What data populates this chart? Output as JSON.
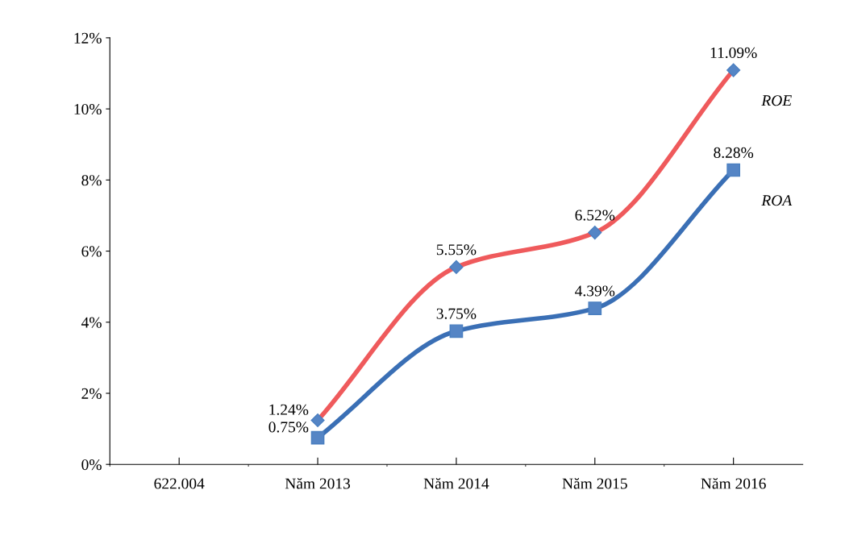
{
  "chart_data": {
    "type": "line",
    "categories": [
      "622.004",
      "Năm 2013",
      "Năm 2014",
      "Năm 2015",
      "Năm 2016"
    ],
    "series": [
      {
        "name": "ROE",
        "color": "#ef5a5c",
        "marker": "diamond",
        "values": [
          null,
          1.24,
          5.55,
          6.52,
          11.09
        ],
        "value_labels": [
          null,
          "1.24%",
          "5.55%",
          "6.52%",
          "11.09%"
        ]
      },
      {
        "name": "ROA",
        "color": "#3a6fb5",
        "marker": "square",
        "values": [
          null,
          0.75,
          3.75,
          4.39,
          8.28
        ],
        "value_labels": [
          null,
          "0.75%",
          "3.75%",
          "4.39%",
          "8.28%"
        ]
      }
    ],
    "ylim": [
      0,
      12
    ],
    "yticks": [
      {
        "value": 0,
        "label": "0%"
      },
      {
        "value": 2,
        "label": "2%"
      },
      {
        "value": 4,
        "label": "4%"
      },
      {
        "value": 6,
        "label": "6%"
      },
      {
        "value": 8,
        "label": "8%"
      },
      {
        "value": 10,
        "label": "10%"
      },
      {
        "value": 12,
        "label": "12%"
      }
    ],
    "grid": false,
    "legend": false,
    "line_style": "solid"
  }
}
